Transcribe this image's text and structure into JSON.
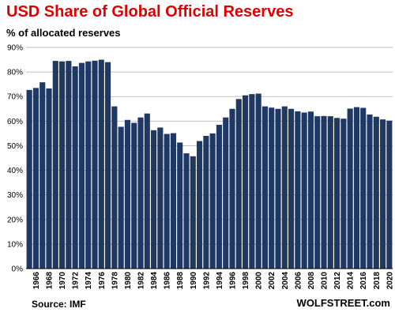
{
  "chart_data": {
    "type": "bar",
    "title": "USD Share of Global  Official Reserves",
    "subtitle": "% of allocated reserves",
    "source": "Source: IMF",
    "brand": "WOLFSTREET.com",
    "bar_color": "#1f3864",
    "grid_color": "#bfbfbf",
    "grid": true,
    "ylim": [
      0,
      90
    ],
    "yticks": [
      0,
      10,
      20,
      30,
      40,
      50,
      60,
      70,
      80,
      90
    ],
    "ytick_suffix": "%",
    "xtick_labels": [
      "1966",
      "1968",
      "1970",
      "1972",
      "1974",
      "1976",
      "1978",
      "1980",
      "1982",
      "1984",
      "1986",
      "1988",
      "1990",
      "1992",
      "1994",
      "1996",
      "1998",
      "2000",
      "2002",
      "2004",
      "2006",
      "2008",
      "2010",
      "2012",
      "2014",
      "2016",
      "2018",
      "2020"
    ],
    "categories": [
      1965,
      1966,
      1967,
      1968,
      1969,
      1970,
      1971,
      1972,
      1973,
      1974,
      1975,
      1976,
      1977,
      1978,
      1979,
      1980,
      1981,
      1982,
      1983,
      1984,
      1985,
      1986,
      1987,
      1988,
      1989,
      1990,
      1991,
      1992,
      1993,
      1994,
      1995,
      1996,
      1997,
      1998,
      1999,
      2000,
      2001,
      2002,
      2003,
      2004,
      2005,
      2006,
      2007,
      2008,
      2009,
      2010,
      2011,
      2012,
      2013,
      2014,
      2015,
      2016,
      2017,
      2018,
      2019,
      2020
    ],
    "values": [
      72.7,
      73.5,
      75.8,
      73.3,
      84.5,
      84.3,
      84.5,
      82.3,
      83.7,
      84.3,
      84.6,
      85.0,
      84.0,
      66.0,
      57.7,
      60.5,
      59.3,
      61.5,
      63.1,
      56.3,
      57.4,
      54.8,
      55.1,
      51.3,
      46.9,
      45.7,
      51.9,
      54.0,
      55.0,
      58.5,
      61.5,
      65.0,
      69.0,
      70.5,
      71.0,
      71.2,
      66.0,
      65.5,
      65.0,
      66.0,
      65.0,
      64.0,
      63.5,
      63.9,
      62.0,
      62.1,
      62.0,
      61.3,
      61.0,
      65.1,
      65.7,
      65.4,
      62.7,
      61.8,
      60.7,
      60.2
    ]
  }
}
